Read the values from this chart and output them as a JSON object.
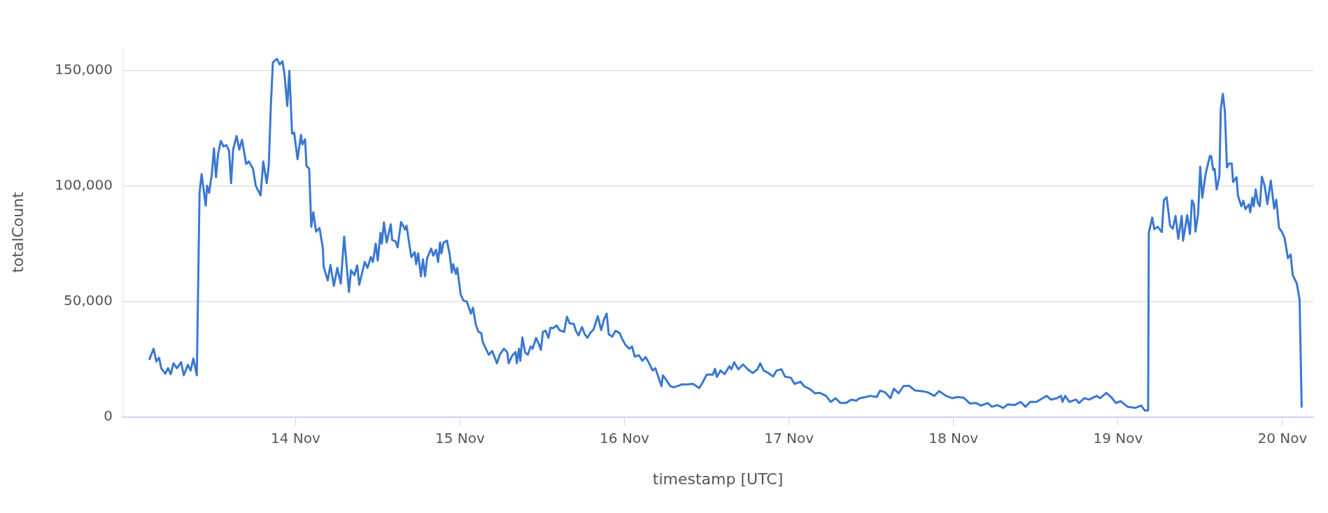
{
  "chart_data": {
    "type": "line",
    "xlabel": "timestamp [UTC]",
    "ylabel": "totalCount",
    "color": "#3a78d0",
    "marker": "none",
    "line_style": "solid",
    "grid": "y",
    "xlim": [
      "--11-12T22:45",
      "--11-20T04:30"
    ],
    "xticks": [
      {
        "value": "--11-14",
        "label": "14 Nov"
      },
      {
        "value": "--11-15",
        "label": "15 Nov"
      },
      {
        "value": "--11-16",
        "label": "16 Nov"
      },
      {
        "value": "--11-17",
        "label": "17 Nov"
      },
      {
        "value": "--11-18",
        "label": "18 Nov"
      },
      {
        "value": "--11-19",
        "label": "19 Nov"
      },
      {
        "value": "--11-20",
        "label": "20 Nov"
      }
    ],
    "ylim": [
      0,
      160000
    ],
    "yticks": [
      {
        "value": 0,
        "label": "0"
      },
      {
        "value": 50000,
        "label": "50,000"
      },
      {
        "value": 100000,
        "label": "100,000"
      },
      {
        "value": 150000,
        "label": "150,000"
      }
    ],
    "x": [
      "--11-13T02:42",
      "--11-13T03:18",
      "--11-13T03:42",
      "--11-13T04:06",
      "--11-13T04:24",
      "--11-13T05:00",
      "--11-13T05:24",
      "--11-13T05:48",
      "--11-13T06:12",
      "--11-13T06:42",
      "--11-13T07:18",
      "--11-13T07:42",
      "--11-13T08:18",
      "--11-13T08:42",
      "--11-13T09:06",
      "--11-13T09:36",
      "--11-13T10:00",
      "--11-13T10:18",
      "--11-13T10:54",
      "--11-13T11:06",
      "--11-13T11:24",
      "--11-13T11:48",
      "--11-13T12:06",
      "--11-13T12:24",
      "--11-13T12:42",
      "--11-13T13:06",
      "--11-13T13:30",
      "--11-13T13:54",
      "--11-13T14:18",
      "--11-13T14:36",
      "--11-13T14:54",
      "--11-13T15:24",
      "--11-13T15:48",
      "--11-13T16:12",
      "--11-13T16:48",
      "--11-13T17:12",
      "--11-13T17:48",
      "--11-13T18:12",
      "--11-13T18:54",
      "--11-13T19:18",
      "--11-13T19:48",
      "--11-13T20:06",
      "--11-13T20:24",
      "--11-13T20:42",
      "--11-13T21:18",
      "--11-13T21:42",
      "--11-13T22:06",
      "--11-13T22:24",
      "--11-13T22:48",
      "--11-13T23:06",
      "--11-13T23:30",
      "--11-13T23:48",
      "--11-14T00:18",
      "--11-14T00:48",
      "--11-14T01:00",
      "--11-14T01:24",
      "--11-14T01:36",
      "--11-14T02:00",
      "--11-14T02:18",
      "--11-14T02:36",
      "--11-14T03:00",
      "--11-14T03:30",
      "--11-14T04:00",
      "--11-14T04:06",
      "--11-14T04:42",
      "--11-14T05:06",
      "--11-14T05:36",
      "--11-14T06:06",
      "--11-14T06:36",
      "--11-14T07:06",
      "--11-14T07:48",
      "--11-14T08:06",
      "--11-14T08:36",
      "--11-14T09:00",
      "--11-14T09:18",
      "--11-14T10:06",
      "--11-14T10:30",
      "--11-14T11:00",
      "--11-14T11:18",
      "--11-14T11:42",
      "--11-14T12:00",
      "--11-14T12:24",
      "--11-14T12:36",
      "--11-14T12:54",
      "--11-14T13:18",
      "--11-14T13:54",
      "--11-14T14:06",
      "--11-14T14:36",
      "--11-14T14:54",
      "--11-14T15:24",
      "--11-14T16:00",
      "--11-14T16:12",
      "--11-14T16:54",
      "--11-14T17:24",
      "--11-14T17:36",
      "--11-14T17:54",
      "--11-14T18:18",
      "--11-14T18:36",
      "--11-14T18:54",
      "--11-14T19:12",
      "--11-14T19:48",
      "--11-14T20:06",
      "--11-14T20:30",
      "--11-14T20:48",
      "--11-14T21:06",
      "--11-14T21:18",
      "--11-14T21:36",
      "--11-14T22:06",
      "--11-14T22:30",
      "--11-14T22:48",
      "--11-14T23:00",
      "--11-14T23:24",
      "--11-14T23:36",
      "--11-15T00:06",
      "--11-15T00:30",
      "--11-15T01:00",
      "--11-15T01:36",
      "--11-15T01:54",
      "--11-15T02:18",
      "--11-15T02:42",
      "--11-15T03:06",
      "--11-15T03:18",
      "--11-15T03:42",
      "--11-15T04:12",
      "--11-15T04:42",
      "--11-15T05:24",
      "--11-15T05:48",
      "--11-15T06:24",
      "--11-15T06:54",
      "--11-15T07:06",
      "--11-15T07:36",
      "--11-15T08:06",
      "--11-15T08:18",
      "--11-15T08:36",
      "--11-15T08:48",
      "--11-15T09:06",
      "--11-15T09:30",
      "--11-15T09:54",
      "--11-15T10:18",
      "--11-15T10:36",
      "--11-15T11:06",
      "--11-15T11:30",
      "--11-15T11:48",
      "--11-15T12:06",
      "--11-15T12:30",
      "--11-15T12:54",
      "--11-15T13:12",
      "--11-15T13:36",
      "--11-15T14:06",
      "--11-15T14:30",
      "--11-15T15:12",
      "--11-15T15:36",
      "--11-15T16:00",
      "--11-15T16:36",
      "--11-15T16:54",
      "--11-15T17:18",
      "--11-15T17:48",
      "--11-15T18:12",
      "--11-15T18:36",
      "--11-15T19:00",
      "--11-15T19:30",
      "--11-15T20:06",
      "--11-15T20:36",
      "--11-15T21:00",
      "--11-15T21:24",
      "--11-15T21:42",
      "--11-15T22:12",
      "--11-15T22:42",
      "--11-15T23:18",
      "--11-15T23:36",
      "--11-16T00:06",
      "--11-16T00:42",
      "--11-16T01:06",
      "--11-16T01:30",
      "--11-16T02:06",
      "--11-16T02:36",
      "--11-16T03:06",
      "--11-16T03:36",
      "--11-16T04:06",
      "--11-16T04:30",
      "--11-16T05:24",
      "--11-16T05:36",
      "--11-16T06:06",
      "--11-16T06:42",
      "--11-16T07:12",
      "--11-16T07:54",
      "--11-16T08:24",
      "--11-16T09:06",
      "--11-16T10:00",
      "--11-16T10:54",
      "--11-16T11:24",
      "--11-16T12:00",
      "--11-16T12:54",
      "--11-16T13:12",
      "--11-16T13:30",
      "--11-16T14:00",
      "--11-16T14:36",
      "--11-16T15:18",
      "--11-16T15:36",
      "--11-16T16:00",
      "--11-16T16:36",
      "--11-16T17:18",
      "--11-16T18:00",
      "--11-16T18:42",
      "--11-16T19:24",
      "--11-16T19:48",
      "--11-16T20:18",
      "--11-16T21:00",
      "--11-16T21:42",
      "--11-16T22:12",
      "--11-16T22:54",
      "--11-16T23:24",
      "--11-17T00:18",
      "--11-17T00:48",
      "--11-17T01:42",
      "--11-17T02:12",
      "--11-17T03:06",
      "--11-17T03:48",
      "--11-17T04:30",
      "--11-17T05:24",
      "--11-17T06:06",
      "--11-17T06:48",
      "--11-17T07:30",
      "--11-17T08:18",
      "--11-17T09:06",
      "--11-17T09:48",
      "--11-17T10:18",
      "--11-17T11:12",
      "--11-17T11:54",
      "--11-17T12:48",
      "--11-17T13:18",
      "--11-17T14:00",
      "--11-17T14:48",
      "--11-17T15:18",
      "--11-17T16:00",
      "--11-17T16:42",
      "--11-17T17:30",
      "--11-17T18:24",
      "--11-17T19:18",
      "--11-17T20:12",
      "--11-17T21:12",
      "--11-17T21:54",
      "--11-17T22:54",
      "--11-17T23:48",
      "--11-18T00:36",
      "--11-18T01:30",
      "--11-18T02:24",
      "--11-18T03:18",
      "--11-18T04:00",
      "--11-18T05:00",
      "--11-18T05:36",
      "--11-18T06:24",
      "--11-18T07:18",
      "--11-18T07:54",
      "--11-18T08:54",
      "--11-18T09:48",
      "--11-18T10:30",
      "--11-18T11:12",
      "--11-18T12:06",
      "--11-18T13:00",
      "--11-18T13:36",
      "--11-18T14:12",
      "--11-18T15:06",
      "--11-18T15:42",
      "--11-18T15:54",
      "--11-18T16:18",
      "--11-18T16:54",
      "--11-18T17:54",
      "--11-18T18:18",
      "--11-18T19:06",
      "--11-18T19:48",
      "--11-18T20:54",
      "--11-18T21:24",
      "--11-18T22:18",
      "--11-18T23:00",
      "--11-18T23:42",
      "--11-19T00:24",
      "--11-19T01:24",
      "--11-19T02:30",
      "--11-19T03:24",
      "--11-19T03:54",
      "--11-19T04:24",
      "--11-19T04:30",
      "--11-19T05:00",
      "--11-19T05:18",
      "--11-19T05:48",
      "--11-19T06:24",
      "--11-19T06:42",
      "--11-19T07:06",
      "--11-19T07:36",
      "--11-19T08:00",
      "--11-19T08:24",
      "--11-19T08:48",
      "--11-19T09:18",
      "--11-19T09:30",
      "--11-19T10:06",
      "--11-19T10:30",
      "--11-19T10:48",
      "--11-19T11:06",
      "--11-19T11:18",
      "--11-19T11:42",
      "--11-19T12:00",
      "--11-19T12:18",
      "--11-19T12:48",
      "--11-19T13:24",
      "--11-19T13:36",
      "--11-19T13:54",
      "--11-19T14:06",
      "--11-19T14:24",
      "--11-19T14:48",
      "--11-19T15:00",
      "--11-19T15:18",
      "--11-19T15:36",
      "--11-19T15:54",
      "--11-19T16:12",
      "--11-19T16:36",
      "--11-19T16:48",
      "--11-19T17:18",
      "--11-19T17:30",
      "--11-19T18:00",
      "--11-19T18:18",
      "--11-19T18:36",
      "--11-19T19:06",
      "--11-19T19:18",
      "--11-19T19:36",
      "--11-19T19:48",
      "--11-19T20:06",
      "--11-19T20:24",
      "--11-19T20:42",
      "--11-19T21:00",
      "--11-19T21:24",
      "--11-19T21:48",
      "--11-19T22:18",
      "--11-19T22:48",
      "--11-19T23:06",
      "--11-19T23:30",
      "--11-19T23:54",
      "--11-20T00:18",
      "--11-20T00:48",
      "--11-20T01:12",
      "--11-20T01:30",
      "--11-20T02:06",
      "--11-20T02:30",
      "--11-20T02:48"
    ],
    "values": [
      25100,
      29600,
      24100,
      25700,
      21200,
      18800,
      21200,
      18600,
      23300,
      21200,
      23800,
      18100,
      22600,
      20200,
      25400,
      18100,
      97100,
      105200,
      91600,
      100200,
      97100,
      105400,
      116400,
      103900,
      113800,
      119600,
      117200,
      117800,
      115400,
      101300,
      115900,
      121700,
      115900,
      120100,
      109600,
      110700,
      107500,
      100200,
      96000,
      110700,
      101300,
      109100,
      134700,
      153600,
      155100,
      152700,
      154100,
      148300,
      134700,
      149900,
      122700,
      123200,
      111700,
      122200,
      118000,
      120300,
      108800,
      107500,
      82400,
      88700,
      80300,
      81900,
      73000,
      65200,
      59200,
      65900,
      56800,
      64600,
      57800,
      78200,
      54200,
      63600,
      61500,
      65700,
      57300,
      67200,
      64600,
      69300,
      67200,
      75100,
      67800,
      79800,
      75100,
      84300,
      75600,
      83500,
      76700,
      76100,
      73500,
      84500,
      81200,
      82900,
      69300,
      71400,
      66200,
      70900,
      61000,
      68300,
      61000,
      68800,
      73000,
      69900,
      72500,
      67200,
      75600,
      70900,
      75600,
      76400,
      70400,
      62600,
      66200,
      62000,
      64600,
      53100,
      50500,
      50000,
      44800,
      47400,
      40100,
      36900,
      36400,
      32700,
      30100,
      27000,
      28600,
      23300,
      27000,
      29600,
      28000,
      23300,
      26500,
      28200,
      23300,
      29600,
      24400,
      34500,
      28000,
      27000,
      30600,
      29600,
      34300,
      31700,
      29100,
      36900,
      37400,
      34300,
      38700,
      38500,
      39700,
      37700,
      36900,
      43500,
      40600,
      40400,
      37400,
      35400,
      39000,
      35900,
      34300,
      36400,
      38000,
      43700,
      37700,
      42200,
      44800,
      35900,
      34800,
      37400,
      36400,
      34300,
      31400,
      29600,
      30600,
      26200,
      26800,
      24400,
      26000,
      23300,
      20200,
      21200,
      13400,
      18100,
      16000,
      13400,
      12900,
      13600,
      14200,
      14200,
      14400,
      12600,
      15000,
      18400,
      18400,
      20900,
      17400,
      20200,
      18600,
      22000,
      20700,
      23800,
      20700,
      22800,
      20700,
      19100,
      20700,
      23300,
      20200,
      19100,
      17600,
      20200,
      20700,
      17600,
      17000,
      14400,
      15300,
      13400,
      12100,
      10300,
      10500,
      9200,
      6600,
      8200,
      6100,
      6100,
      7600,
      7100,
      8200,
      8700,
      9200,
      8700,
      11500,
      10800,
      8200,
      12300,
      10300,
      13400,
      13600,
      11500,
      11300,
      10800,
      9200,
      11300,
      9200,
      8200,
      8700,
      8400,
      5900,
      6100,
      5000,
      6100,
      4500,
      5200,
      4000,
      5500,
      5200,
      6600,
      4500,
      6600,
      6600,
      8200,
      9200,
      7600,
      8200,
      9200,
      6600,
      9200,
      6600,
      7600,
      6100,
      8200,
      7600,
      9200,
      8200,
      10500,
      8700,
      6100,
      6900,
      4500,
      4000,
      5000,
      2900,
      2900,
      79800,
      86400,
      81400,
      82400,
      80100,
      93900,
      95200,
      83000,
      81600,
      87100,
      77200,
      87100,
      76400,
      87400,
      79300,
      93900,
      91900,
      80300,
      88200,
      108400,
      95000,
      105400,
      113000,
      113000,
      107000,
      107500,
      98600,
      104400,
      133200,
      140000,
      132400,
      108100,
      109800,
      109800,
      101800,
      103900,
      96000,
      91300,
      93700,
      90000,
      92100,
      88700,
      95000,
      91300,
      98600,
      92900,
      91300,
      104100,
      100200,
      92300,
      102400,
      90300,
      94100,
      81900,
      80300,
      77700,
      68800,
      70400,
      61500,
      57800,
      50800,
      4500
    ]
  }
}
